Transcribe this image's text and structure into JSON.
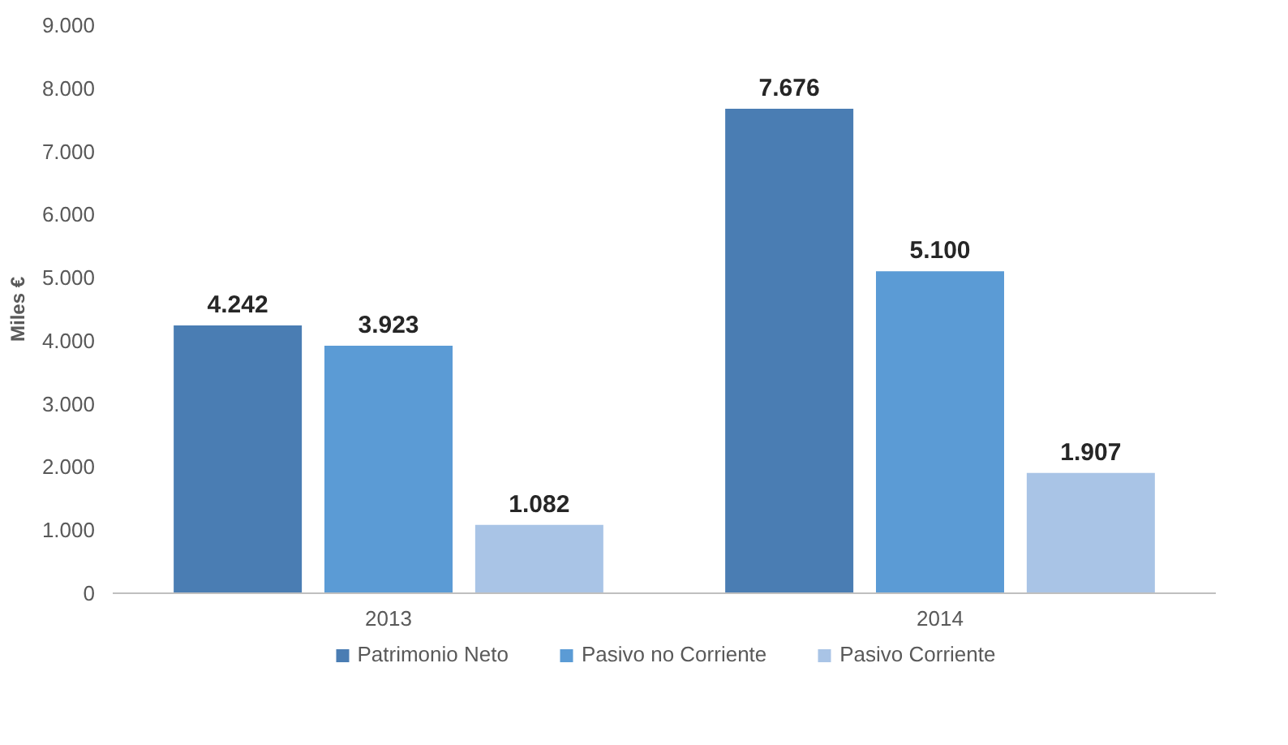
{
  "chart_data": {
    "type": "bar",
    "ylabel": "Miles €",
    "categories": [
      "2013",
      "2014"
    ],
    "series": [
      {
        "name": "Patrimonio Neto",
        "color": "#4a7db3",
        "values": [
          4242,
          7676
        ],
        "value_labels": [
          "4.242",
          "7.676"
        ]
      },
      {
        "name": "Pasivo no Corriente",
        "color": "#5b9bd5",
        "values": [
          3923,
          5100
        ],
        "value_labels": [
          "3.923",
          "5.100"
        ]
      },
      {
        "name": "Pasivo Corriente",
        "color": "#a9c4e6",
        "values": [
          1082,
          1907
        ],
        "value_labels": [
          "1.082",
          "1.907"
        ]
      }
    ],
    "ylim": [
      0,
      9000
    ],
    "yticks": [
      {
        "value": 0,
        "label": "0"
      },
      {
        "value": 1000,
        "label": "1.000"
      },
      {
        "value": 2000,
        "label": "2.000"
      },
      {
        "value": 3000,
        "label": "3.000"
      },
      {
        "value": 4000,
        "label": "4.000"
      },
      {
        "value": 5000,
        "label": "5.000"
      },
      {
        "value": 6000,
        "label": "6.000"
      },
      {
        "value": 7000,
        "label": "7.000"
      },
      {
        "value": 8000,
        "label": "8.000"
      },
      {
        "value": 9000,
        "label": "9.000"
      }
    ],
    "grid": false,
    "legend": "bottom"
  }
}
